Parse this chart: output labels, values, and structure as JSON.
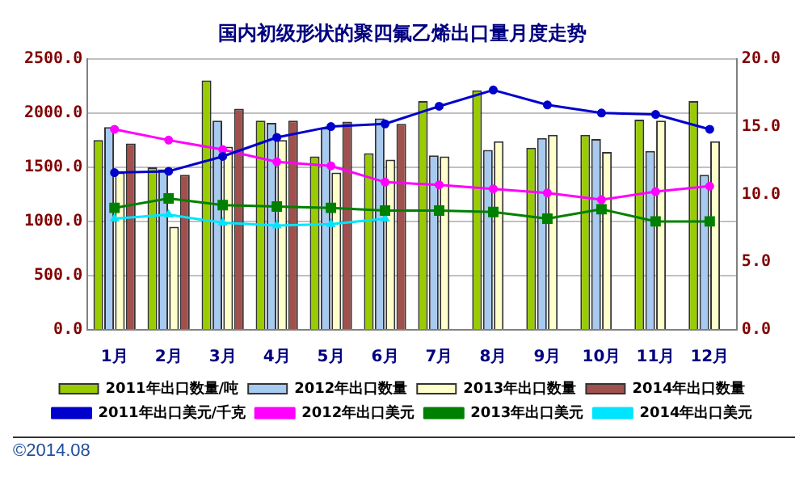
{
  "chart_data": {
    "type": "bar",
    "title": "国内初级形状的聚四氟乙烯出口量月度走势",
    "categories": [
      "1月",
      "2月",
      "3月",
      "4月",
      "5月",
      "6月",
      "7月",
      "8月",
      "9月",
      "10月",
      "11月",
      "12月"
    ],
    "series": [
      {
        "name": "2011年出口数量/吨",
        "color": "#99cc00",
        "values": [
          1750,
          1500,
          2300,
          1930,
          1600,
          1630,
          2110,
          2210,
          1680,
          1800,
          1940,
          2110
        ]
      },
      {
        "name": "2012年出口数量",
        "color": "#a6caf0",
        "values": [
          1870,
          1480,
          1930,
          1910,
          1860,
          1950,
          1610,
          1660,
          1770,
          1760,
          1650,
          1430
        ]
      },
      {
        "name": "2013年出口数量",
        "color": "#ffffcc",
        "values": [
          1450,
          950,
          1690,
          1750,
          1450,
          1570,
          1600,
          1740,
          1800,
          1640,
          1930,
          1740
        ]
      },
      {
        "name": "2014年出口数量",
        "color": "#a0504d",
        "values": [
          1720,
          1430,
          2040,
          1930,
          1920,
          1900,
          null,
          null,
          null,
          null,
          null,
          null
        ]
      },
      {
        "name": "2011年出口美元/千克",
        "type": "line",
        "axis": "y2",
        "marker": "circle",
        "color": "#0000cc",
        "values": [
          11.6,
          11.7,
          12.8,
          14.2,
          15.0,
          15.2,
          16.5,
          17.7,
          16.6,
          16.0,
          15.9,
          14.8
        ]
      },
      {
        "name": "2012年出口美元",
        "type": "line",
        "axis": "y2",
        "marker": "circle",
        "color": "#ff00ff",
        "values": [
          14.8,
          14.0,
          13.3,
          12.4,
          12.1,
          10.9,
          10.7,
          10.4,
          10.1,
          9.6,
          10.2,
          10.6
        ]
      },
      {
        "name": "2013年出口美元",
        "type": "line",
        "axis": "y2",
        "marker": "square",
        "color": "#008000",
        "values": [
          9.0,
          9.7,
          9.2,
          9.1,
          9.0,
          8.8,
          8.8,
          8.7,
          8.2,
          8.9,
          8.0,
          8.0
        ]
      },
      {
        "name": "2014年出口美元",
        "type": "line",
        "axis": "y2",
        "marker": "triangle",
        "color": "#00e5ff",
        "values": [
          8.2,
          8.5,
          7.9,
          7.7,
          7.8,
          8.2,
          null,
          null,
          null,
          null,
          null,
          null
        ]
      }
    ],
    "ylim": [
      0,
      2500
    ],
    "yticks": [
      {
        "value": 0,
        "label": "0.0"
      },
      {
        "value": 500,
        "label": "500.0"
      },
      {
        "value": 1000,
        "label": "1000.0"
      },
      {
        "value": 1500,
        "label": "1500.0"
      },
      {
        "value": 2000,
        "label": "2000.0"
      },
      {
        "value": 2500,
        "label": "2500.0"
      }
    ],
    "y2lim": [
      0,
      20
    ],
    "y2ticks": [
      {
        "value": 0,
        "label": "0.0"
      },
      {
        "value": 5,
        "label": "5.0"
      },
      {
        "value": 10,
        "label": "10.0"
      },
      {
        "value": 15,
        "label": "15.0"
      },
      {
        "value": 20,
        "label": "20.0"
      }
    ],
    "grid": "y",
    "legend": "bottom",
    "annotations": [
      "©2014.08"
    ]
  }
}
